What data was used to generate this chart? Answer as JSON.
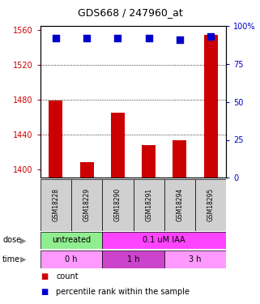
{
  "title": "GDS668 / 247960_at",
  "samples": [
    "GSM18228",
    "GSM18229",
    "GSM18290",
    "GSM18291",
    "GSM18294",
    "GSM18295"
  ],
  "bar_values": [
    1479,
    1408,
    1465,
    1428,
    1433,
    1555
  ],
  "percentile_values": [
    92,
    92,
    92,
    92,
    91,
    93
  ],
  "bar_color": "#cc0000",
  "dot_color": "#0000cc",
  "ylim_left": [
    1390,
    1565
  ],
  "ylim_right": [
    0,
    100
  ],
  "yticks_left": [
    1400,
    1440,
    1480,
    1520,
    1560
  ],
  "yticks_right": [
    0,
    25,
    50,
    75,
    100
  ],
  "ytick_labels_right": [
    "0",
    "25",
    "50",
    "75",
    "100%"
  ],
  "grid_lines": [
    1440,
    1480,
    1520
  ],
  "dose_labels": [
    {
      "label": "untreated",
      "span": [
        0,
        2
      ],
      "color": "#90ee90"
    },
    {
      "label": "0.1 uM IAA",
      "span": [
        2,
        6
      ],
      "color": "#ff44ff"
    }
  ],
  "time_labels": [
    {
      "label": "0 h",
      "span": [
        0,
        2
      ],
      "color": "#ff99ff"
    },
    {
      "label": "1 h",
      "span": [
        2,
        4
      ],
      "color": "#cc44cc"
    },
    {
      "label": "3 h",
      "span": [
        4,
        6
      ],
      "color": "#ff99ff"
    }
  ],
  "legend_items": [
    {
      "color": "#cc0000",
      "label": "count"
    },
    {
      "color": "#0000cc",
      "label": "percentile rank within the sample"
    }
  ],
  "left_tick_color": "#cc0000",
  "right_tick_color": "#0000cc",
  "sample_box_color": "#d0d0d0",
  "bar_width": 0.45,
  "dot_size": 30,
  "title_fontsize": 9,
  "tick_fontsize": 7,
  "label_fontsize": 7,
  "sample_fontsize": 5.5,
  "row_fontsize": 7,
  "legend_fontsize": 7
}
